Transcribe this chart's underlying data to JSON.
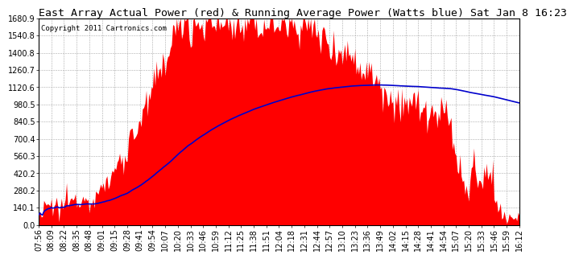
{
  "title": "East Array Actual Power (red) & Running Average Power (Watts blue) Sat Jan 8 16:23",
  "copyright": "Copyright 2011 Cartronics.com",
  "bg_color": "#ffffff",
  "plot_bg_color": "#ffffff",
  "grid_color": "#bbbbbb",
  "actual_color": "#ff0000",
  "avg_color": "#0000cc",
  "y_min": 0.0,
  "y_max": 1680.9,
  "y_ticks": [
    0.0,
    140.1,
    280.2,
    420.2,
    560.3,
    700.4,
    840.5,
    980.5,
    1120.6,
    1260.7,
    1400.8,
    1540.8,
    1680.9
  ],
  "x_labels": [
    "07:56",
    "08:09",
    "08:22",
    "08:35",
    "08:48",
    "09:01",
    "09:15",
    "09:28",
    "09:41",
    "09:54",
    "10:07",
    "10:20",
    "10:33",
    "10:46",
    "10:59",
    "11:12",
    "11:25",
    "11:38",
    "11:51",
    "12:04",
    "12:18",
    "12:31",
    "12:44",
    "12:57",
    "13:10",
    "13:23",
    "13:36",
    "13:49",
    "14:02",
    "14:15",
    "14:28",
    "14:41",
    "14:54",
    "15:07",
    "15:20",
    "15:33",
    "15:46",
    "15:59",
    "16:12"
  ],
  "title_fontsize": 9.5,
  "tick_fontsize": 7,
  "copyright_fontsize": 6.5
}
